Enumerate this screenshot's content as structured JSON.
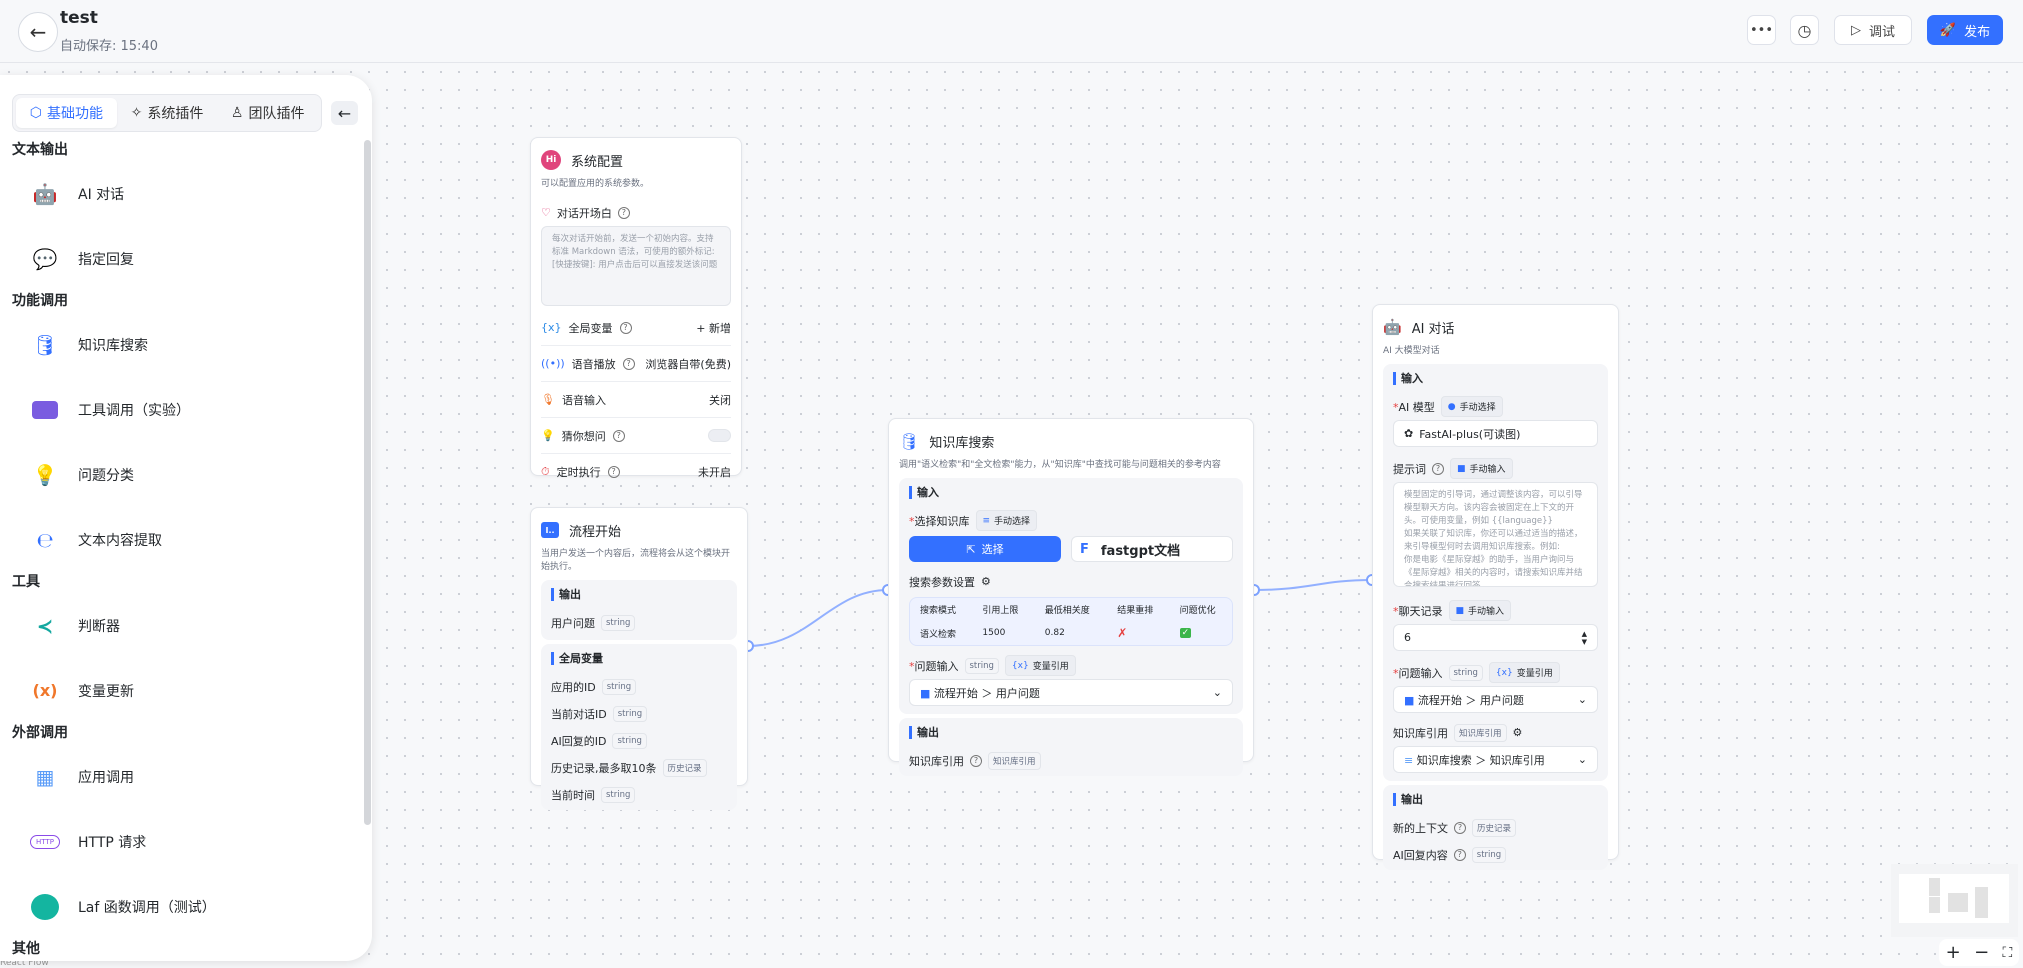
{
  "header": {
    "title": "test",
    "autosave": "自动保存: 15:40",
    "debug_label": "调试",
    "publish_label": "发布",
    "accent": "#3370ff"
  },
  "sidebar": {
    "tabs": [
      {
        "label": "基础功能",
        "active": true
      },
      {
        "label": "系统插件"
      },
      {
        "label": "团队插件"
      }
    ],
    "sections": [
      {
        "title": "文本输出",
        "items": [
          {
            "label": "AI 对话",
            "icon": "robot-icon"
          },
          {
            "label": "指定回复",
            "icon": "chat-bubble-icon"
          }
        ]
      },
      {
        "title": "功能调用",
        "items": [
          {
            "label": "知识库搜索",
            "icon": "database-icon"
          },
          {
            "label": "工具调用（实验）",
            "icon": "toolbox-icon"
          },
          {
            "label": "问题分类",
            "icon": "lightbulb-icon"
          },
          {
            "label": "文本内容提取",
            "icon": "extract-icon"
          }
        ]
      },
      {
        "title": "工具",
        "items": [
          {
            "label": "判断器",
            "icon": "branch-icon"
          },
          {
            "label": "变量更新",
            "icon": "variable-icon"
          }
        ]
      },
      {
        "title": "外部调用",
        "items": [
          {
            "label": "应用调用",
            "icon": "grid-icon"
          },
          {
            "label": "HTTP 请求",
            "icon": "http-icon"
          },
          {
            "label": "Laf 函数调用（测试）",
            "icon": "laf-icon"
          }
        ]
      },
      {
        "title": "其他",
        "items": []
      }
    ]
  },
  "nodes": {
    "system_config": {
      "title": "系统配置",
      "desc": "可以配置应用的系统参数。",
      "welcome_label": "对话开场白",
      "welcome_placeholder": "每次对话开始前，发送一个初始内容。支持标准 Markdown 语法，可使用的额外标记:\n[快捷按键]: 用户点击后可以直接发送该问题",
      "rows": [
        {
          "label": "全局变量",
          "value": "+ 新增"
        },
        {
          "label": "语音播放",
          "value": "浏览器自带(免费)"
        },
        {
          "label": "语音输入",
          "value": "关闭"
        },
        {
          "label": "猜你想问",
          "toggle": false
        },
        {
          "label": "定时执行",
          "value": "未开启"
        }
      ]
    },
    "flow_start": {
      "title": "流程开始",
      "desc": "当用户发送一个内容后，流程将会从这个模块开始执行。",
      "output_title": "输出",
      "outputs": [
        {
          "label": "用户问题",
          "type": "string"
        }
      ],
      "globals_title": "全局变量",
      "globals": [
        {
          "label": "应用的ID",
          "type": "string"
        },
        {
          "label": "当前对话ID",
          "type": "string"
        },
        {
          "label": "AI回复的ID",
          "type": "string"
        },
        {
          "label": "历史记录,最多取10条",
          "type": "历史记录"
        },
        {
          "label": "当前时间",
          "type": "string"
        }
      ]
    },
    "kb_search": {
      "title": "知识库搜索",
      "desc": "调用\"语义检索\"和\"全文检索\"能力，从\"知识库\"中查找可能与问题相关的参考内容",
      "input_title": "输入",
      "select_kb_label": "选择知识库",
      "manual_select": "手动选择",
      "select_button": "选择",
      "kb_name": "fastgpt文档",
      "params_label": "搜索参数设置",
      "table": {
        "headers": [
          "搜索模式",
          "引用上限",
          "最低相关度",
          "结果重排",
          "问题优化"
        ],
        "row": [
          "语义检索",
          "1500",
          "0.82",
          "✗",
          "✓"
        ]
      },
      "question_label": "问题输入",
      "question_type": "string",
      "var_ref": "变量引用",
      "question_value": [
        "流程开始",
        "用户问题"
      ],
      "output_title": "输出",
      "output_label": "知识库引用",
      "output_type": "知识库引用"
    },
    "ai_chat": {
      "title": "AI 对话",
      "desc": "AI 大模型对话",
      "input_title": "输入",
      "model_label": "AI 模型",
      "manual_select": "手动选择",
      "model_value": "FastAI-plus(可读图)",
      "prompt_label": "提示词",
      "manual_input": "手动输入",
      "prompt_placeholder": "模型固定的引导词，通过调整该内容，可以引导模型聊天方向。该内容会被固定在上下文的开头。可使用变量，例如 {{language}}\n如果关联了知识库，你还可以通过适当的描述，来引导模型何时去调用知识库搜索。例如:\n你是电影《星际穿越》的助手，当用户询问与《星际穿越》相关的内容时，请搜索知识库并结合搜索结果进行回答。",
      "history_label": "聊天记录",
      "history_value": "6",
      "question_label": "问题输入",
      "question_type": "string",
      "var_ref": "变量引用",
      "question_value": [
        "流程开始",
        "用户问题"
      ],
      "quote_label": "知识库引用",
      "quote_type": "知识库引用",
      "quote_value": [
        "知识库搜索",
        "知识库引用"
      ],
      "output_title": "输出",
      "outputs": [
        {
          "label": "新的上下文",
          "type": "历史记录"
        },
        {
          "label": "AI回复内容",
          "type": "string"
        }
      ]
    }
  },
  "attribution": "React Flow"
}
